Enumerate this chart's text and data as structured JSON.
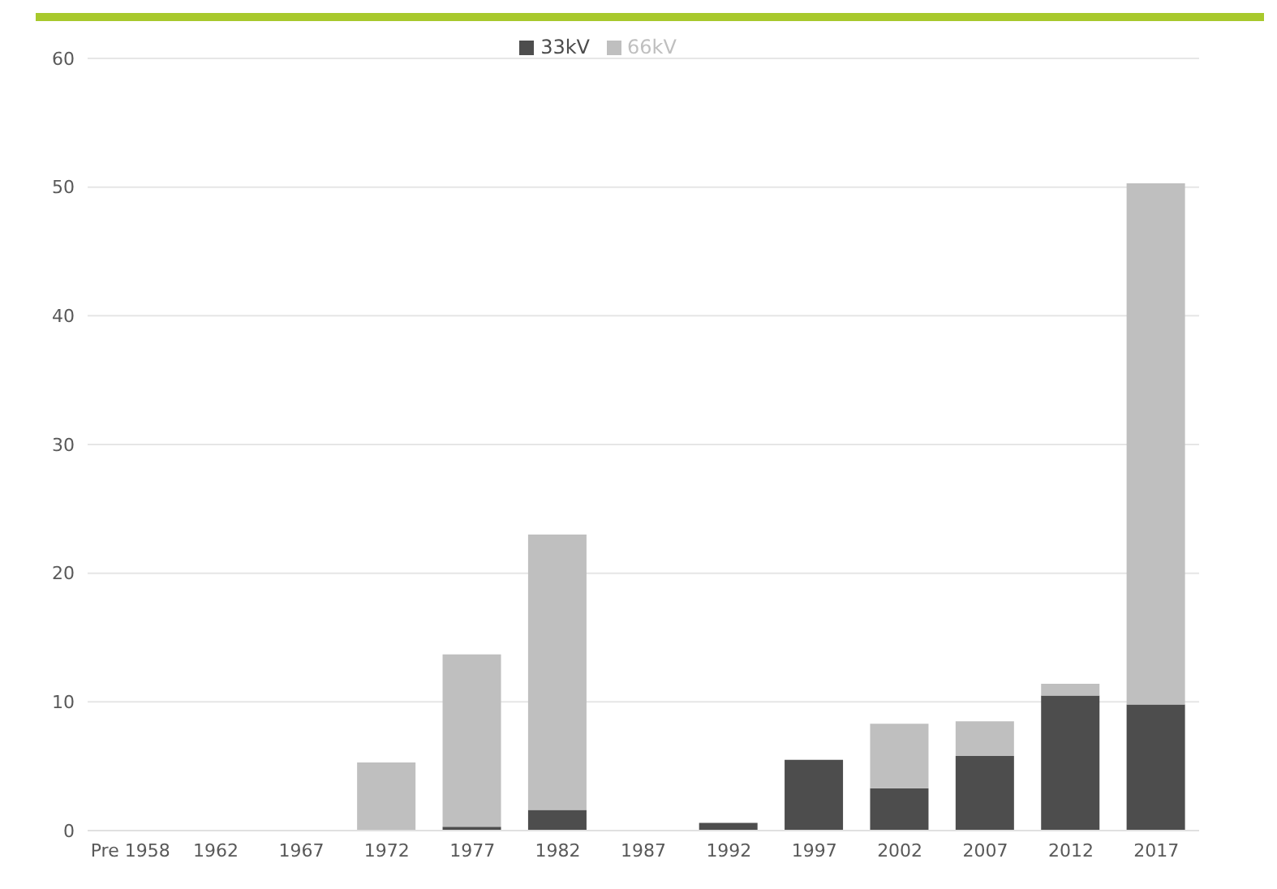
{
  "chart_data": {
    "type": "bar",
    "stacked": true,
    "categories": [
      "Pre 1958",
      "1962",
      "1967",
      "1972",
      "1977",
      "1982",
      "1987",
      "1992",
      "1997",
      "2002",
      "2007",
      "2012",
      "2017"
    ],
    "series": [
      {
        "name": "33kV",
        "color": "#4d4d4d",
        "values": [
          0,
          0,
          0,
          0,
          0.3,
          1.6,
          0,
          0.6,
          5.5,
          3.3,
          5.8,
          10.5,
          9.8
        ]
      },
      {
        "name": "66kV",
        "color": "#bfbfbf",
        "values": [
          0,
          0,
          0,
          5.3,
          13.4,
          21.4,
          0,
          0,
          0,
          5.0,
          2.7,
          0.9,
          40.5
        ]
      }
    ],
    "ylim": [
      0,
      60
    ],
    "yticks": [
      0,
      10,
      20,
      30,
      40,
      50,
      60
    ],
    "grid": "y",
    "legend": "top"
  }
}
